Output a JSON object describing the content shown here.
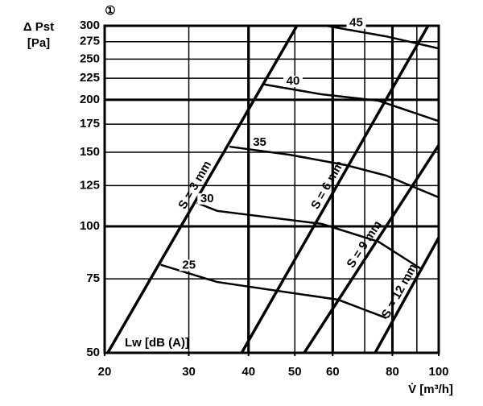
{
  "chart_data": {
    "type": "line",
    "marker": "①",
    "ylabel": [
      "Δ Pst",
      "[Pa]"
    ],
    "xlabel": "V̇ [m³/h]",
    "legend_label": "Lw [dB (A)]",
    "log_x": true,
    "log_y": true,
    "xlim": [
      20,
      100
    ],
    "ylim": [
      50,
      300
    ],
    "xticks": [
      20,
      30,
      40,
      50,
      60,
      80,
      100
    ],
    "yticks": [
      50,
      75,
      100,
      125,
      150,
      175,
      200,
      225,
      250,
      275,
      300
    ],
    "xgrid": [
      30,
      40,
      50,
      60,
      70,
      80,
      90
    ],
    "major_xgrid": [
      40,
      60,
      80
    ],
    "major_ygrid": [
      100,
      200
    ],
    "color": "#000000",
    "series": [
      {
        "name": "S = 3 mm",
        "x": [
          20.3,
          50.5
        ],
        "values": [
          50,
          300
        ]
      },
      {
        "name": "S = 6 mm",
        "x": [
          38.7,
          95
        ],
        "values": [
          50,
          300
        ]
      },
      {
        "name": "S = 9 mm",
        "x": [
          52.3,
          100
        ],
        "values": [
          50,
          156
        ]
      },
      {
        "name": "S = 12 mm",
        "x": [
          73.6,
          100
        ],
        "values": [
          50,
          94
        ]
      }
    ],
    "noise_curves": [
      {
        "name": "25",
        "x": [
          26.2,
          34.4,
          61.6,
          77.7
        ],
        "values": [
          81,
          73.7,
          66.9,
          60.5
        ]
      },
      {
        "name": "30",
        "x": [
          31.2,
          34.4,
          57.0,
          74.8,
          92.5
        ],
        "values": [
          113.7,
          108.8,
          101.3,
          91.9,
          78.8
        ]
      },
      {
        "name": "35",
        "x": [
          36.5,
          48.8,
          64.0,
          77.7,
          100
        ],
        "values": [
          154.7,
          148,
          139.8,
          132,
          117.2
        ]
      },
      {
        "name": "40",
        "x": [
          43.1,
          57.0,
          74.8,
          100
        ],
        "values": [
          217.6,
          206,
          199,
          178
        ]
      },
      {
        "name": "45",
        "x": [
          58.1,
          77.7,
          100
        ],
        "values": [
          300,
          283,
          265
        ]
      }
    ]
  }
}
